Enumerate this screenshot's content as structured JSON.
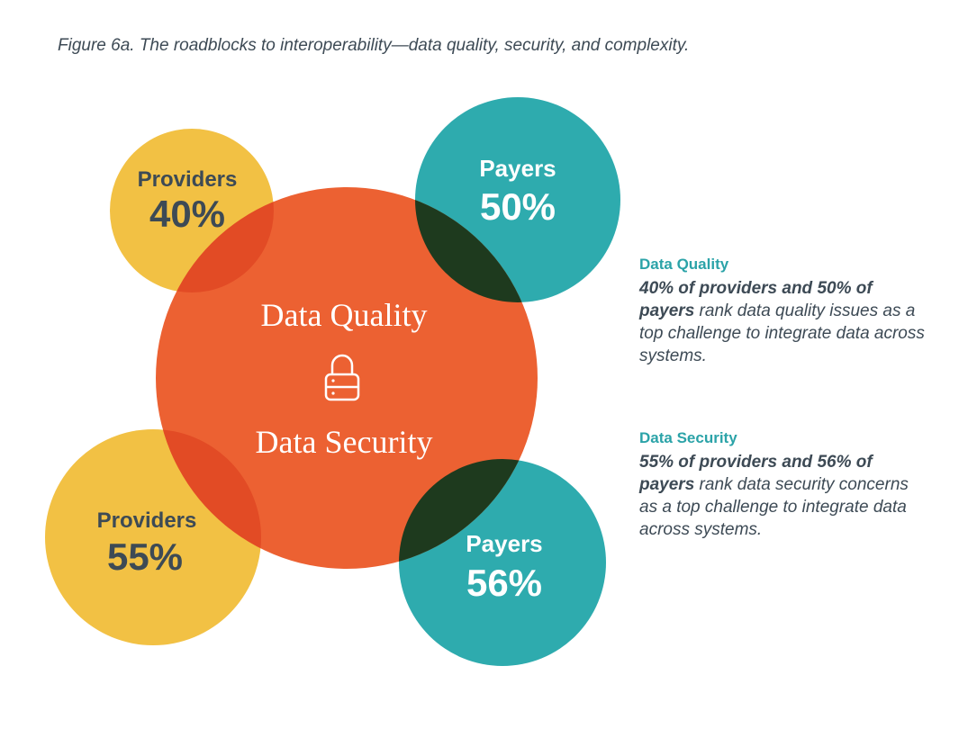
{
  "caption": "Figure 6a. The roadblocks to interoperability—data quality, security, and complexity.",
  "colors": {
    "yellow": "#F2C144",
    "teal": "#2EABAE",
    "orange": "#EC6132",
    "overlap_yellow": "#E24B25",
    "overlap_teal": "#1E3A1E",
    "dark_text": "#3d4a55",
    "accent_title": "#2BA3A8"
  },
  "circles": {
    "providers_top": {
      "label": "Providers",
      "value": "40%"
    },
    "payers_top": {
      "label": "Payers",
      "value": "50%"
    },
    "providers_bottom": {
      "label": "Providers",
      "value": "55%"
    },
    "payers_bottom": {
      "label": "Payers",
      "value": "56%"
    }
  },
  "center": {
    "line1": "Data Quality",
    "icon": "lock-icon",
    "line2": "Data Security"
  },
  "notes": {
    "quality": {
      "title": "Data Quality",
      "bold": "40% of providers and 50% of payers",
      "rest": " rank data quality issues as a top challenge to integrate data across systems."
    },
    "security": {
      "title": "Data Security",
      "bold": "55% of providers and 56% of payers",
      "rest": " rank data security concerns as a top challenge to integrate data across systems."
    }
  }
}
